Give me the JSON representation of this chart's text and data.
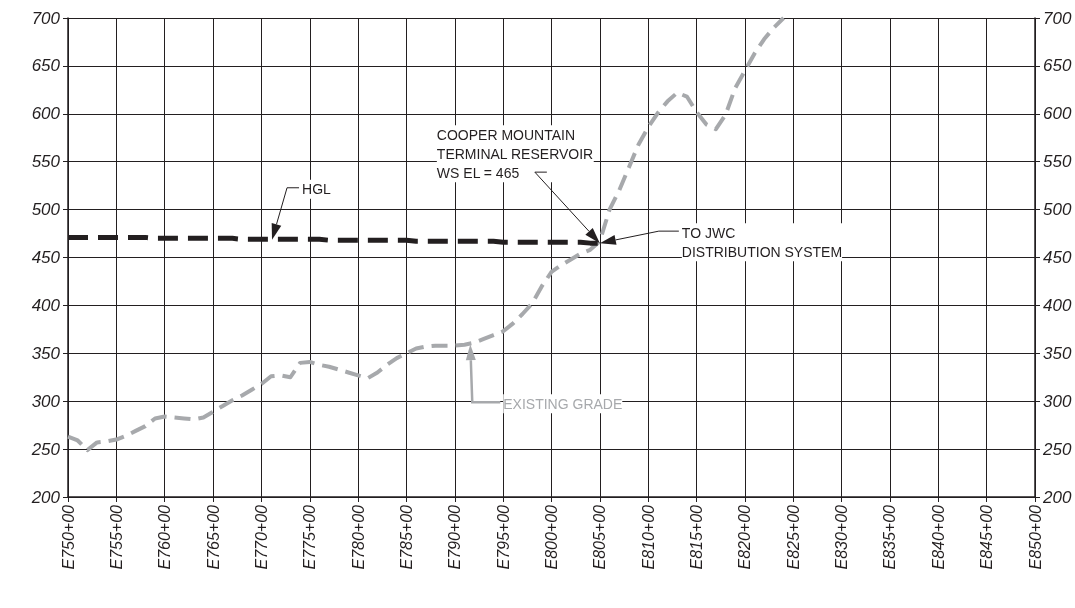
{
  "chart_data": {
    "type": "line",
    "categories": [
      "E750+00",
      null,
      null,
      null,
      null,
      "E755+00",
      null,
      null,
      null,
      null,
      "E760+00",
      null,
      null,
      null,
      null,
      "E765+00",
      null,
      null,
      null,
      null,
      "E770+00",
      null,
      null,
      null,
      null,
      "E775+00",
      null,
      null,
      null,
      null,
      "E780+00",
      null,
      null,
      null,
      null,
      "E785+00",
      null,
      null,
      null,
      null,
      "E790+00",
      null,
      null,
      null,
      null,
      "E795+00",
      null,
      null,
      null,
      null,
      "E800+00",
      null,
      null,
      null,
      null,
      "E805+00",
      null,
      null,
      null,
      null,
      "E810+00",
      null,
      null,
      null,
      null,
      "E815+00",
      null,
      null,
      null,
      null,
      "E820+00",
      null,
      null,
      null,
      null,
      "E825+00",
      null,
      null,
      null,
      null,
      "E830+00",
      null,
      null,
      null,
      null,
      "E835+00",
      null,
      null,
      null,
      null,
      "E840+00",
      null,
      null,
      null,
      null,
      "E845+00",
      null,
      null,
      null,
      null,
      "E850+00"
    ],
    "ylim": [
      200,
      700
    ],
    "yticks": [
      200,
      250,
      300,
      350,
      400,
      450,
      500,
      550,
      600,
      650,
      700
    ],
    "y2lim": [
      200,
      700
    ],
    "y2ticks": [
      200,
      250,
      300,
      350,
      400,
      450,
      500,
      550,
      600,
      650,
      700
    ],
    "grid": true,
    "marker": "none",
    "line_style": "dashed",
    "series": [
      {
        "color": "#231f20",
        "values": [
          471,
          471,
          471,
          471,
          471,
          471,
          471,
          471,
          471,
          470,
          470,
          470,
          470,
          470,
          470,
          470,
          470,
          470,
          469,
          469,
          469,
          469,
          469,
          469,
          469,
          469,
          469,
          468,
          468,
          468,
          468,
          468,
          468,
          468,
          468,
          468,
          467,
          467,
          467,
          467,
          467,
          467,
          467,
          467,
          467,
          466,
          466,
          466,
          466,
          466,
          466,
          466,
          466,
          466,
          465,
          465,
          null,
          null,
          null,
          null,
          null,
          null,
          null,
          null,
          null,
          null,
          null,
          null,
          null,
          null,
          null,
          null,
          null,
          null,
          null,
          null,
          null,
          null,
          null,
          null,
          null,
          null,
          null,
          null,
          null,
          null,
          null,
          null,
          null,
          null,
          null,
          null,
          null,
          null,
          null,
          null,
          null,
          null,
          null,
          null,
          null
        ]
      },
      {
        "color": "#a7a9ac",
        "values": [
          263,
          259,
          249,
          257,
          258,
          260,
          264,
          269,
          274,
          282,
          284,
          283,
          282,
          281,
          283,
          289,
          295,
          301,
          306,
          312,
          318,
          326,
          327,
          325,
          340,
          341,
          338,
          336,
          333,
          330,
          327,
          324,
          330,
          338,
          345,
          350,
          355,
          357,
          358,
          358,
          358,
          359,
          361,
          365,
          369,
          373,
          381,
          391,
          402,
          420,
          435,
          442,
          448,
          454,
          458,
          467,
          500,
          520,
          544,
          568,
          586,
          601,
          613,
          622,
          618,
          602,
          589,
          584,
          599,
          627,
          645,
          663,
          678,
          690,
          700,
          null,
          null,
          null,
          null,
          null,
          null,
          null,
          null,
          null,
          null,
          null,
          null,
          null,
          null,
          null,
          null,
          null,
          null,
          null,
          null,
          null,
          null,
          null,
          null,
          null,
          null
        ]
      }
    ],
    "annotations": [
      "HGL",
      "COOPER MOUNTAIN\nTERMINAL RESERVOIR\nWS EL = 465",
      "TO JWC\nDISTRIBUTION SYSTEM",
      "EXISTING GRADE"
    ]
  }
}
